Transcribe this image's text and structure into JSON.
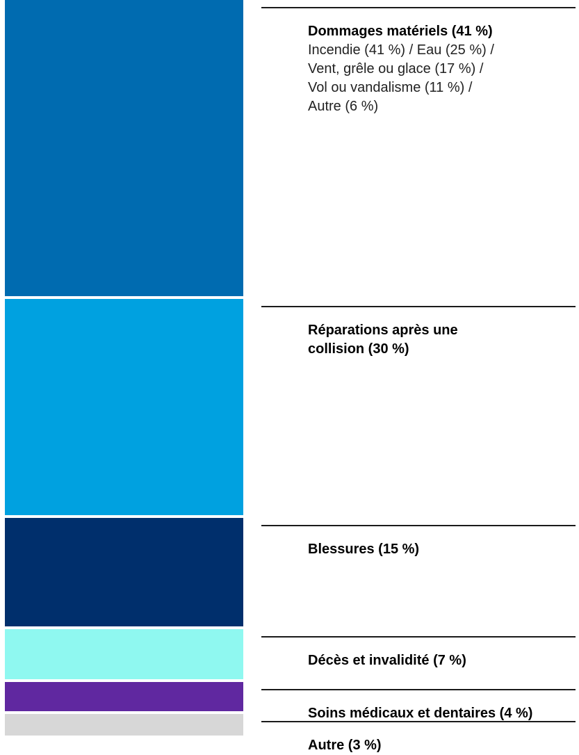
{
  "chart_data": {
    "type": "bar",
    "stacked": true,
    "orientation": "vertical",
    "categories": [
      "Dommages matériels",
      "Réparations après une collision",
      "Blessures",
      "Décès et invalidité",
      "Soins médicaux et dentaires",
      "Autre"
    ],
    "values": [
      41,
      30,
      15,
      7,
      4,
      3
    ],
    "unit": "%",
    "colors": [
      "#006BB0",
      "#00A1E0",
      "#002F6C",
      "#8FF8F0",
      "#6028A0",
      "#D7D7D7"
    ],
    "labels": [
      {
        "title": "Dommages matériels (41 %)",
        "detail": [
          "Incendie (41 %) / Eau (25 %) /",
          "Vent, grêle ou glace (17 %) /",
          "Vol ou vandalisme (11 %) /",
          "Autre (6 %)"
        ]
      },
      {
        "title": "Réparations après une collision (30 %)",
        "detail": []
      },
      {
        "title": "Blessures (15 %)",
        "detail": []
      },
      {
        "title": "Décès et invalidité (7 %)",
        "detail": []
      },
      {
        "title": "Soins médicaux et dentaires (4 %)",
        "detail": []
      },
      {
        "title": "Autre (3 %)",
        "detail": []
      }
    ],
    "sub_breakdown": {
      "category": "Dommages matériels",
      "items": [
        {
          "name": "Incendie",
          "value": 41
        },
        {
          "name": "Eau",
          "value": 25
        },
        {
          "name": "Vent, grêle ou glace",
          "value": 17
        },
        {
          "name": "Vol ou vandalisme",
          "value": 11
        },
        {
          "name": "Autre",
          "value": 6
        }
      ]
    }
  }
}
